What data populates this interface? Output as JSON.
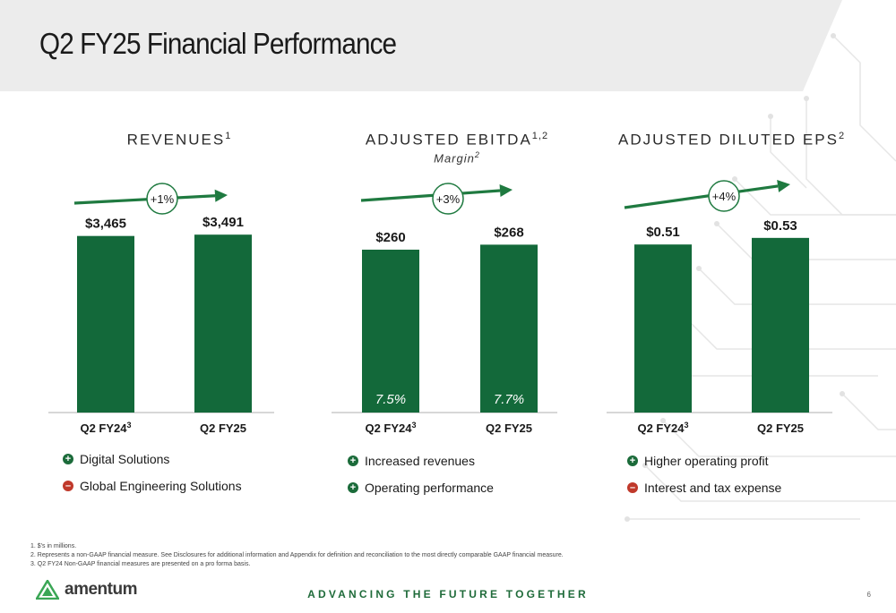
{
  "slide": {
    "title": "Q2 FY25 Financial Performance",
    "tagline": "ADVANCING THE FUTURE TOGETHER",
    "page_number": "6",
    "logo_text": "amentum",
    "colors": {
      "bar": "#13693A",
      "arrow": "#1F7A40",
      "plus": "#1B6B3A",
      "minus": "#C0392B",
      "header_band": "#ECECEC"
    }
  },
  "panels": [
    {
      "heading": "REVENUES",
      "heading_sup": "1",
      "subheading": "",
      "subheading_sup": "",
      "delta": "+1%",
      "drivers": [
        {
          "sign": "+",
          "text": "Digital Solutions"
        },
        {
          "sign": "–",
          "text": "Global Engineering Solutions"
        }
      ]
    },
    {
      "heading": "ADJUSTED EBITDA",
      "heading_sup": "1,2",
      "subheading": "Margin",
      "subheading_sup": "2",
      "delta": "+3%",
      "drivers": [
        {
          "sign": "+",
          "text": "Increased revenues"
        },
        {
          "sign": "+",
          "text": "Operating performance"
        }
      ]
    },
    {
      "heading": "ADJUSTED DILUTED EPS",
      "heading_sup": "2",
      "subheading": "",
      "subheading_sup": "",
      "delta": "+4%",
      "drivers": [
        {
          "sign": "+",
          "text": "Higher operating profit"
        },
        {
          "sign": "–",
          "text": "Interest and tax expense"
        }
      ]
    }
  ],
  "chart_data": [
    {
      "type": "bar",
      "title": "REVENUES",
      "categories": [
        "Q2 FY24",
        "Q2 FY25"
      ],
      "category_sups": [
        "3",
        ""
      ],
      "values": [
        3465,
        3491
      ],
      "labels": [
        "$3,465",
        "$3,491"
      ],
      "margins": [],
      "ylim": [
        0,
        3600
      ]
    },
    {
      "type": "bar",
      "title": "ADJUSTED EBITDA",
      "categories": [
        "Q2 FY24",
        "Q2 FY25"
      ],
      "category_sups": [
        "3",
        ""
      ],
      "values": [
        260,
        268
      ],
      "labels": [
        "$260",
        "$268"
      ],
      "margins": [
        "7.5%",
        "7.7%"
      ],
      "ylim": [
        0,
        280
      ]
    },
    {
      "type": "bar",
      "title": "ADJUSTED DILUTED EPS",
      "categories": [
        "Q2 FY24",
        "Q2 FY25"
      ],
      "category_sups": [
        "3",
        ""
      ],
      "values": [
        0.51,
        0.53
      ],
      "labels": [
        "$0.51",
        "$0.53"
      ],
      "margins": [],
      "ylim": [
        0,
        0.535
      ]
    }
  ],
  "footnotes": [
    "1.  $'s in millions.",
    "2.  Represents a non-GAAP financial measure. See Disclosures for additional information and Appendix for definition and reconciliation to the most directly comparable GAAP financial measure.",
    "3.  Q2 FY24 Non-GAAP financial measures are presented on a pro forma basis."
  ]
}
